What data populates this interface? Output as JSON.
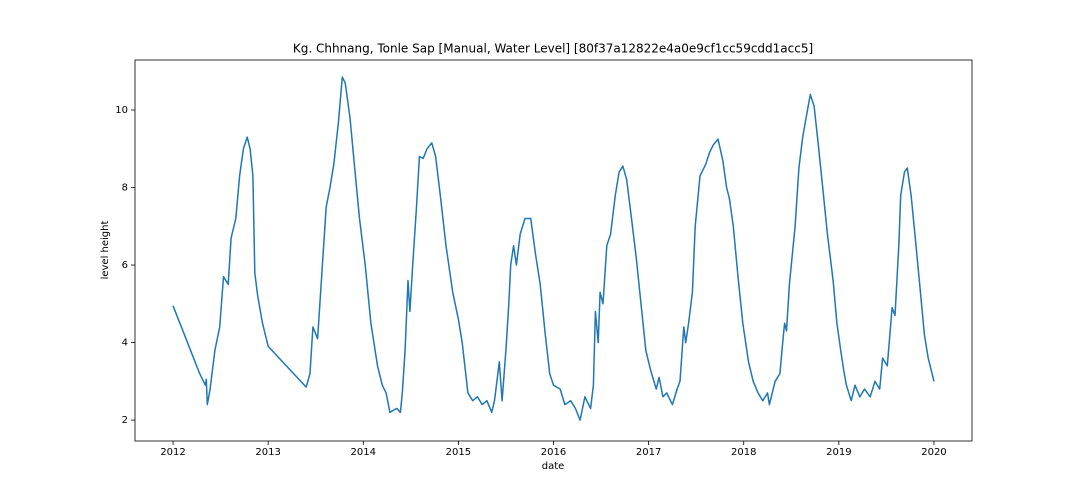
{
  "chart_data": {
    "type": "line",
    "title": "Kg. Chhnang, Tonle Sap [Manual, Water Level] [80f37a12822e4a0e9cf1cc59cdd1acc5]",
    "x_label": "date",
    "y_label": "level height",
    "xlim": [
      2011.6,
      2020.4
    ],
    "xticks": [
      2012,
      2013,
      2014,
      2015,
      2016,
      2017,
      2018,
      2019,
      2020
    ],
    "ylim": [
      1.46,
      11.29
    ],
    "yticks": [
      2,
      4,
      6,
      8,
      10
    ],
    "series": [
      {
        "color": "#1f77b4",
        "x": [
          2012.0,
          2012.28,
          2012.34,
          2012.35,
          2012.36,
          2012.39,
          2012.44,
          2012.49,
          2012.53,
          2012.58,
          2012.61,
          2012.66,
          2012.7,
          2012.74,
          2012.78,
          2012.81,
          2012.84,
          2012.86,
          2012.89,
          2012.94,
          2013.0,
          2013.4,
          2013.44,
          2013.47,
          2013.52,
          2013.57,
          2013.61,
          2013.65,
          2013.69,
          2013.74,
          2013.78,
          2013.81,
          2013.86,
          2013.91,
          2013.96,
          2014.02,
          2014.08,
          2014.15,
          2014.2,
          2014.24,
          2014.28,
          2014.35,
          2014.39,
          2014.41,
          2014.44,
          2014.47,
          2014.49,
          2014.52,
          2014.56,
          2014.59,
          2014.63,
          2014.67,
          2014.72,
          2014.76,
          2014.81,
          2014.87,
          2014.94,
          2015.0,
          2015.04,
          2015.1,
          2015.15,
          2015.2,
          2015.25,
          2015.3,
          2015.35,
          2015.38,
          2015.43,
          2015.46,
          2015.5,
          2015.53,
          2015.55,
          2015.58,
          2015.61,
          2015.65,
          2015.7,
          2015.76,
          2015.81,
          2015.86,
          2015.91,
          2015.96,
          2016.0,
          2016.07,
          2016.12,
          2016.18,
          2016.23,
          2016.28,
          2016.33,
          2016.39,
          2016.42,
          2016.44,
          2016.47,
          2016.49,
          2016.52,
          2016.56,
          2016.6,
          2016.65,
          2016.69,
          2016.73,
          2016.77,
          2016.82,
          2016.87,
          2016.92,
          2016.97,
          2017.02,
          2017.08,
          2017.11,
          2017.15,
          2017.19,
          2017.25,
          2017.3,
          2017.33,
          2017.37,
          2017.39,
          2017.42,
          2017.46,
          2017.49,
          2017.54,
          2017.6,
          2017.64,
          2017.68,
          2017.73,
          2017.78,
          2017.82,
          2017.85,
          2017.89,
          2017.94,
          2017.99,
          2018.05,
          2018.1,
          2018.15,
          2018.2,
          2018.25,
          2018.27,
          2018.33,
          2018.38,
          2018.41,
          2018.43,
          2018.45,
          2018.48,
          2018.54,
          2018.58,
          2018.62,
          2018.67,
          2018.7,
          2018.74,
          2018.78,
          2018.83,
          2018.88,
          2018.94,
          2018.98,
          2019.02,
          2019.05,
          2019.08,
          2019.13,
          2019.17,
          2019.22,
          2019.27,
          2019.33,
          2019.38,
          2019.43,
          2019.46,
          2019.51,
          2019.56,
          2019.59,
          2019.63,
          2019.65,
          2019.69,
          2019.72,
          2019.76,
          2019.8,
          2019.85,
          2019.9,
          2019.94,
          2020.0
        ],
        "values": [
          4.95,
          3.2,
          2.9,
          3.05,
          2.4,
          2.8,
          3.8,
          4.4,
          5.7,
          5.5,
          6.7,
          7.2,
          8.3,
          9.0,
          9.3,
          9.0,
          8.3,
          5.8,
          5.2,
          4.5,
          3.9,
          2.85,
          3.2,
          4.4,
          4.1,
          6.0,
          7.5,
          8.0,
          8.6,
          9.7,
          10.85,
          10.7,
          9.8,
          8.5,
          7.2,
          6.0,
          4.5,
          3.4,
          2.9,
          2.7,
          2.2,
          2.3,
          2.2,
          2.7,
          3.8,
          5.6,
          4.8,
          6.0,
          7.5,
          8.8,
          8.75,
          9.0,
          9.15,
          8.8,
          7.8,
          6.5,
          5.3,
          4.6,
          4.0,
          2.7,
          2.5,
          2.6,
          2.4,
          2.5,
          2.2,
          2.5,
          3.5,
          2.5,
          3.8,
          5.0,
          6.0,
          6.5,
          6.0,
          6.8,
          7.2,
          7.2,
          6.3,
          5.5,
          4.3,
          3.2,
          2.9,
          2.8,
          2.4,
          2.5,
          2.3,
          2.0,
          2.6,
          2.3,
          2.9,
          4.8,
          4.0,
          5.3,
          5.0,
          6.5,
          6.8,
          7.8,
          8.4,
          8.55,
          8.2,
          7.2,
          6.2,
          5.0,
          3.8,
          3.3,
          2.8,
          3.1,
          2.6,
          2.7,
          2.4,
          2.8,
          3.0,
          4.4,
          4.0,
          4.5,
          5.3,
          7.0,
          8.3,
          8.6,
          8.9,
          9.1,
          9.25,
          8.7,
          8.0,
          7.7,
          7.0,
          5.7,
          4.5,
          3.5,
          3.0,
          2.7,
          2.5,
          2.7,
          2.4,
          3.0,
          3.2,
          4.0,
          4.5,
          4.3,
          5.5,
          7.0,
          8.5,
          9.3,
          10.0,
          10.4,
          10.1,
          9.2,
          8.0,
          6.8,
          5.6,
          4.5,
          3.8,
          3.3,
          2.9,
          2.5,
          2.9,
          2.6,
          2.8,
          2.6,
          3.0,
          2.8,
          3.6,
          3.4,
          4.9,
          4.7,
          6.5,
          7.8,
          8.4,
          8.5,
          7.8,
          6.8,
          5.5,
          4.2,
          3.6,
          3.0
        ]
      }
    ]
  }
}
